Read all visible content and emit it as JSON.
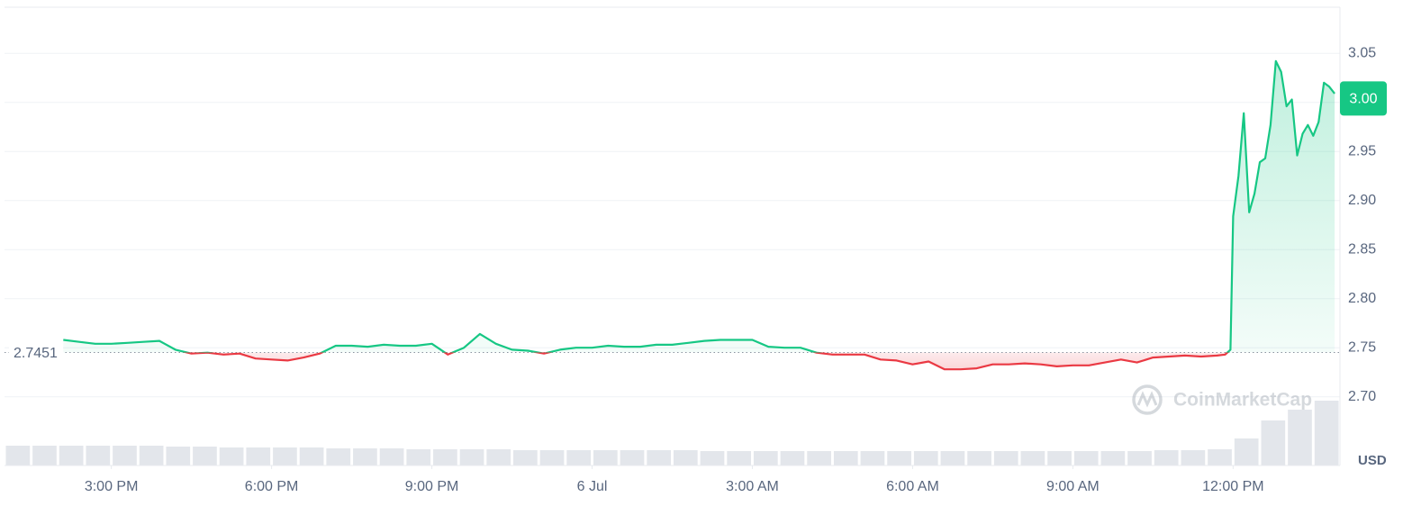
{
  "chart_data": {
    "type": "line",
    "x": [
      14.1,
      14.4,
      14.7,
      15.0,
      15.3,
      15.6,
      15.9,
      16.2,
      16.5,
      16.8,
      17.1,
      17.4,
      17.7,
      18.0,
      18.3,
      18.6,
      18.9,
      19.2,
      19.5,
      19.8,
      20.1,
      20.4,
      20.7,
      21.0,
      21.3,
      21.6,
      21.9,
      22.2,
      22.5,
      22.8,
      23.1,
      23.4,
      23.7,
      24.0,
      24.3,
      24.6,
      24.9,
      25.2,
      25.5,
      25.8,
      26.1,
      26.4,
      26.7,
      27.0,
      27.3,
      27.6,
      27.9,
      28.2,
      28.5,
      28.8,
      29.1,
      29.4,
      29.7,
      30.0,
      30.3,
      30.6,
      30.9,
      31.2,
      31.5,
      31.8,
      32.1,
      32.4,
      32.7,
      33.0,
      33.3,
      33.6,
      33.9,
      34.2,
      34.5,
      34.8,
      35.1,
      35.4,
      35.7,
      35.85,
      35.95,
      36.0,
      36.1,
      36.2,
      36.3,
      36.4,
      36.5,
      36.6,
      36.7,
      36.8,
      36.9,
      37.0,
      37.1,
      37.2,
      37.3,
      37.4,
      37.5,
      37.6,
      37.7,
      37.8,
      37.9
    ],
    "values": [
      2.758,
      2.756,
      2.754,
      2.754,
      2.755,
      2.756,
      2.757,
      2.748,
      2.744,
      2.745,
      2.743,
      2.744,
      2.739,
      2.738,
      2.737,
      2.74,
      2.744,
      2.752,
      2.752,
      2.751,
      2.753,
      2.752,
      2.752,
      2.754,
      2.743,
      2.75,
      2.764,
      2.754,
      2.748,
      2.747,
      2.744,
      2.748,
      2.75,
      2.75,
      2.752,
      2.751,
      2.751,
      2.753,
      2.753,
      2.755,
      2.757,
      2.758,
      2.758,
      2.758,
      2.751,
      2.75,
      2.75,
      2.745,
      2.743,
      2.743,
      2.743,
      2.738,
      2.737,
      2.733,
      2.736,
      2.728,
      2.728,
      2.729,
      2.733,
      2.733,
      2.734,
      2.733,
      2.731,
      2.732,
      2.732,
      2.735,
      2.738,
      2.735,
      2.74,
      2.741,
      2.742,
      2.741,
      2.742,
      2.743,
      2.748,
      2.884,
      2.925,
      2.989,
      2.888,
      2.907,
      2.939,
      2.943,
      2.977,
      3.042,
      3.031,
      2.996,
      3.003,
      2.946,
      2.968,
      2.977,
      2.966,
      2.98,
      3.02,
      3.016,
      3.009
    ],
    "up_color": "#16c784",
    "down_color": "#ea3943",
    "baseline": 2.7451,
    "last_price": {
      "value": 3.004,
      "label": "3.00"
    },
    "xlim": [
      13,
      38
    ],
    "xticks": [
      {
        "value": 15,
        "label": "3:00 PM"
      },
      {
        "value": 18,
        "label": "6:00 PM"
      },
      {
        "value": 21,
        "label": "9:00 PM"
      },
      {
        "value": 24,
        "label": "6 Jul"
      },
      {
        "value": 27,
        "label": "3:00 AM"
      },
      {
        "value": 30,
        "label": "6:00 AM"
      },
      {
        "value": 33,
        "label": "9:00 AM"
      },
      {
        "value": 36,
        "label": "12:00 PM"
      }
    ],
    "ylim": [
      2.63,
      3.097
    ],
    "yticks": [
      {
        "value": 2.7,
        "label": "2.70"
      },
      2.75,
      {
        "value": 2.8,
        "label": "2.80"
      },
      2.85,
      {
        "value": 2.9,
        "label": "2.90"
      },
      2.95,
      {
        "value": 3.0,
        "label": "3.00"
      },
      3.05
    ],
    "y_unit": "USD",
    "grid": true,
    "watermark": "CoinMarketCap",
    "volume": {
      "color": "#e3e6eb",
      "ylim": [
        0,
        100
      ],
      "x": [
        13.25,
        13.75,
        14.25,
        14.75,
        15.25,
        15.75,
        16.25,
        16.75,
        17.25,
        17.75,
        18.25,
        18.75,
        19.25,
        19.75,
        20.25,
        20.75,
        21.25,
        21.75,
        22.25,
        22.75,
        23.25,
        23.75,
        24.25,
        24.75,
        25.25,
        25.75,
        26.25,
        26.75,
        27.25,
        27.75,
        28.25,
        28.75,
        29.25,
        29.75,
        30.25,
        30.75,
        31.25,
        31.75,
        32.25,
        32.75,
        33.25,
        33.75,
        34.25,
        34.75,
        35.25,
        35.75,
        36.25,
        36.75,
        37.25,
        37.75
      ],
      "values": [
        22,
        22,
        22,
        22,
        22,
        22,
        21,
        21,
        20,
        20,
        20,
        20,
        19,
        19,
        19,
        18,
        18,
        18,
        18,
        17,
        17,
        17,
        17,
        17,
        17,
        17,
        16,
        16,
        16,
        16,
        16,
        16,
        16,
        16,
        16,
        16,
        16,
        16,
        16,
        16,
        16,
        16,
        16,
        17,
        17,
        18,
        30,
        50,
        62,
        72
      ]
    }
  }
}
